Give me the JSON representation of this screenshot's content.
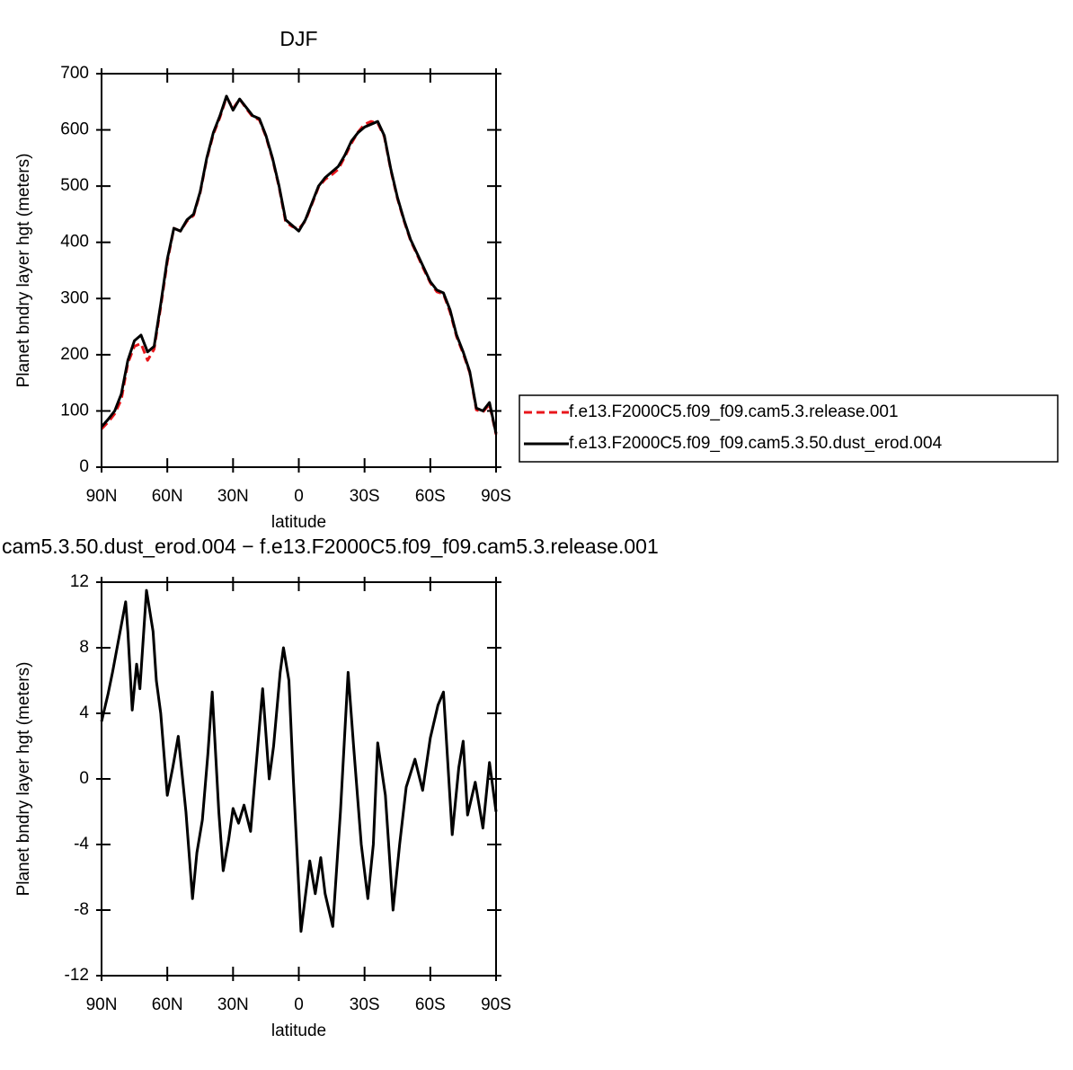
{
  "chart_data": [
    {
      "type": "line",
      "title": "DJF",
      "xlabel": "latitude",
      "ylabel": "Planet bndry layer hgt (meters)",
      "x": [
        90,
        87,
        84,
        81,
        78,
        75,
        72,
        69,
        66,
        63,
        60,
        57,
        54,
        51,
        48,
        45,
        42,
        39,
        36,
        33,
        30,
        27,
        24,
        21,
        18,
        15,
        12,
        9,
        6,
        3,
        0,
        -3,
        -6,
        -9,
        -12,
        -15,
        -18,
        -21,
        -24,
        -27,
        -30,
        -33,
        -36,
        -39,
        -42,
        -45,
        -48,
        -51,
        -54,
        -57,
        -60,
        -63,
        -66,
        -69,
        -72,
        -75,
        -78,
        -81,
        -84,
        -87,
        -90
      ],
      "series": [
        {
          "name": "f.e13.F2000C5.f09_f09.cam5.3.release.001",
          "color": "#e8161b",
          "dash": true,
          "values": [
            68,
            80,
            95,
            120,
            185,
            215,
            220,
            190,
            210,
            285,
            365,
            425,
            420,
            438,
            448,
            488,
            548,
            592,
            622,
            658,
            638,
            655,
            638,
            623,
            618,
            588,
            548,
            498,
            436,
            428,
            424,
            438,
            468,
            498,
            512,
            520,
            530,
            552,
            576,
            596,
            610,
            615,
            612,
            588,
            528,
            478,
            438,
            403,
            378,
            352,
            328,
            312,
            308,
            276,
            232,
            202,
            168,
            102,
            98,
            112,
            58
          ]
        },
        {
          "name": "f.e13.F2000C5.f09_f09.cam5.3.50.dust_erod.004",
          "color": "#000000",
          "dash": false,
          "values": [
            72,
            85,
            100,
            130,
            190,
            225,
            235,
            205,
            215,
            290,
            370,
            425,
            420,
            440,
            450,
            490,
            550,
            595,
            625,
            660,
            635,
            655,
            640,
            625,
            620,
            590,
            550,
            500,
            440,
            430,
            420,
            440,
            470,
            500,
            515,
            525,
            535,
            555,
            580,
            595,
            605,
            610,
            615,
            590,
            530,
            480,
            440,
            405,
            380,
            355,
            330,
            315,
            310,
            280,
            235,
            205,
            170,
            105,
            100,
            115,
            60
          ]
        }
      ],
      "xlim": [
        90,
        -90
      ],
      "ylim": [
        0,
        700
      ],
      "xticks": [
        {
          "value": 90,
          "label": "90N"
        },
        {
          "value": 60,
          "label": "60N"
        },
        {
          "value": 30,
          "label": "30N"
        },
        0,
        {
          "value": -30,
          "label": "30S"
        },
        {
          "value": -60,
          "label": "60S"
        },
        {
          "value": -90,
          "label": "90S"
        }
      ],
      "yticks": [
        0,
        100,
        200,
        300,
        400,
        500,
        600,
        700
      ],
      "legend": "right"
    },
    {
      "type": "line",
      "title": "cam5.3.50.dust_erod.004 − f.e13.F2000C5.f09_f09.cam5.3.release.001",
      "xlabel": "latitude",
      "ylabel": "Planet bndry layer hgt (meters)",
      "x": [
        90,
        87,
        85,
        79,
        78,
        76,
        74,
        72.5,
        69.5,
        66.5,
        65,
        63,
        60,
        57.5,
        55,
        51.5,
        48.5,
        46.5,
        44,
        41.5,
        39.5,
        36.5,
        34.5,
        32,
        30,
        27.5,
        25,
        22,
        20,
        16.5,
        13.5,
        11.5,
        8.5,
        7,
        4.5,
        2.5,
        -1,
        -5,
        -7.5,
        -10,
        -12,
        -15.5,
        -19,
        -22.5,
        -25,
        -28.5,
        -31.5,
        -34,
        -36,
        -39.5,
        -43,
        -46,
        -49,
        -53,
        -56.5,
        -60,
        -63.5,
        -66,
        -70,
        -73,
        -75,
        -77,
        -80.5,
        -84,
        -87,
        -90
      ],
      "values": [
        3.5,
        5.2,
        6.5,
        10.8,
        9,
        4.2,
        7,
        5.5,
        11.5,
        9,
        6,
        4,
        -1,
        0.7,
        2.6,
        -2,
        -7.3,
        -4.5,
        -2.5,
        1.5,
        5.3,
        -2,
        -5.6,
        -3.7,
        -1.8,
        -2.7,
        -1.6,
        -3.2,
        0,
        5.5,
        0,
        2,
        6.5,
        8,
        6,
        0,
        -9.3,
        -5,
        -7,
        -4.8,
        -7,
        -9,
        -2,
        6.5,
        2,
        -4,
        -7.3,
        -4,
        2.2,
        -1,
        -8,
        -4,
        -0.5,
        1.2,
        -0.7,
        2.5,
        4.5,
        5.3,
        -3.4,
        0.7,
        2.3,
        -2.2,
        -0.2,
        -3,
        1,
        -2
      ],
      "color": "#000000",
      "xlim": [
        90,
        -90
      ],
      "ylim": [
        -12,
        12
      ],
      "xticks": [
        {
          "value": 90,
          "label": "90N"
        },
        {
          "value": 60,
          "label": "60N"
        },
        {
          "value": 30,
          "label": "30N"
        },
        0,
        {
          "value": -30,
          "label": "30S"
        },
        {
          "value": -60,
          "label": "60S"
        },
        {
          "value": -90,
          "label": "90S"
        }
      ],
      "yticks": [
        -12,
        -8,
        -4,
        0,
        4,
        8,
        12
      ]
    }
  ]
}
